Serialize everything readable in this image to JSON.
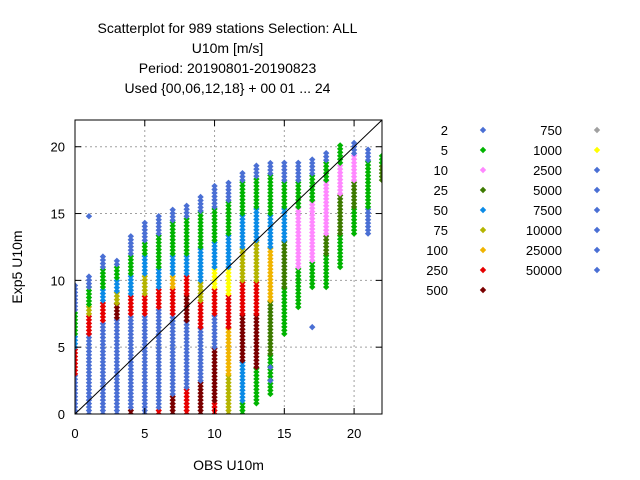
{
  "title_lines": [
    "Scatterplot for  989 stations Selection: ALL",
    "U10m [m/s]",
    "Period: 20190801-20190823",
    "Used {00,06,12,18} + 00 01 ... 24"
  ],
  "chart_data": {
    "type": "scatter",
    "xlabel": "OBS U10m",
    "ylabel": "Exp5 U10m",
    "xlim": [
      0,
      22
    ],
    "ylim": [
      0,
      22
    ],
    "xticks": [
      0,
      5,
      10,
      15,
      20
    ],
    "yticks": [
      0,
      5,
      10,
      15,
      20
    ],
    "grid": true,
    "diagonal": true,
    "legend_position": "right",
    "legend": [
      {
        "label": "2",
        "color": "#4a6fd4"
      },
      {
        "label": "5",
        "color": "#00b400"
      },
      {
        "label": "10",
        "color": "#ff88ff"
      },
      {
        "label": "25",
        "color": "#3d7a00"
      },
      {
        "label": "50",
        "color": "#0b8be6"
      },
      {
        "label": "75",
        "color": "#b4b400"
      },
      {
        "label": "100",
        "color": "#f0b400"
      },
      {
        "label": "250",
        "color": "#e60000"
      },
      {
        "label": "500",
        "color": "#7a0000"
      },
      {
        "label": "750",
        "color": "#a0a0a0"
      },
      {
        "label": "1000",
        "color": "#ffff00"
      },
      {
        "label": "2500",
        "color": "#4a6fd4"
      },
      {
        "label": "5000",
        "color": "#4a6fd4"
      },
      {
        "label": "7500",
        "color": "#4a6fd4"
      },
      {
        "label": "10000",
        "color": "#4a6fd4"
      },
      {
        "label": "25000",
        "color": "#4a6fd4"
      },
      {
        "label": "50000",
        "color": "#4a6fd4"
      }
    ],
    "columns": [
      {
        "x": 0,
        "bands": [
          [
            0,
            3,
            "#4a6fd4"
          ],
          [
            3,
            5,
            "#e60000"
          ],
          [
            5,
            6,
            "#0b8be6"
          ],
          [
            6,
            7.8,
            "#00b400"
          ],
          [
            7.8,
            9.8,
            "#4a6fd4"
          ]
        ]
      },
      {
        "x": 1,
        "bands": [
          [
            0,
            6,
            "#4a6fd4"
          ],
          [
            6,
            7.5,
            "#e60000"
          ],
          [
            7.5,
            8.2,
            "#b4b400"
          ],
          [
            8.2,
            9.5,
            "#00b400"
          ],
          [
            9.5,
            10.5,
            "#4a6fd4"
          ]
        ],
        "extra": [
          14.8
        ]
      },
      {
        "x": 2,
        "bands": [
          [
            0,
            7,
            "#4a6fd4"
          ],
          [
            7,
            8.5,
            "#e60000"
          ],
          [
            8.5,
            9.5,
            "#0b8be6"
          ],
          [
            9.5,
            11,
            "#00b400"
          ],
          [
            11,
            11.8,
            "#4a6fd4"
          ]
        ]
      },
      {
        "x": 3,
        "bands": [
          [
            0,
            7.2,
            "#4a6fd4"
          ],
          [
            7.2,
            8.3,
            "#7a0000"
          ],
          [
            8.3,
            9.2,
            "#b4b400"
          ],
          [
            9.2,
            10.2,
            "#0b8be6"
          ],
          [
            10.2,
            11.2,
            "#00b400"
          ],
          [
            11.2,
            11.5,
            "#4a6fd4"
          ]
        ]
      },
      {
        "x": 4,
        "bands": [
          [
            0,
            0.5,
            "#7a0000"
          ],
          [
            0.5,
            7.5,
            "#4a6fd4"
          ],
          [
            7.5,
            9,
            "#e60000"
          ],
          [
            9,
            10.5,
            "#0b8be6"
          ],
          [
            10.5,
            12,
            "#00b400"
          ],
          [
            12,
            13.5,
            "#4a6fd4"
          ]
        ]
      },
      {
        "x": 5,
        "bands": [
          [
            0,
            7.5,
            "#4a6fd4"
          ],
          [
            7.5,
            9,
            "#e60000"
          ],
          [
            9,
            10.5,
            "#b4b400"
          ],
          [
            10.5,
            12,
            "#0b8be6"
          ],
          [
            12,
            13,
            "#00b400"
          ],
          [
            13,
            14.5,
            "#4a6fd4"
          ]
        ]
      },
      {
        "x": 6,
        "bands": [
          [
            0,
            0.5,
            "#e60000"
          ],
          [
            0.5,
            8,
            "#4a6fd4"
          ],
          [
            8,
            9.5,
            "#e60000"
          ],
          [
            9.5,
            11,
            "#0b8be6"
          ],
          [
            11,
            13.5,
            "#00b400"
          ],
          [
            13.5,
            14.8,
            "#4a6fd4"
          ]
        ]
      },
      {
        "x": 7,
        "bands": [
          [
            0,
            1.5,
            "#7a0000"
          ],
          [
            1.5,
            7.5,
            "#4a6fd4"
          ],
          [
            7.5,
            9.5,
            "#e60000"
          ],
          [
            9.5,
            10.5,
            "#f0b400"
          ],
          [
            10.5,
            12,
            "#0b8be6"
          ],
          [
            12,
            14.5,
            "#00b400"
          ],
          [
            14.5,
            15.3,
            "#4a6fd4"
          ]
        ]
      },
      {
        "x": 8,
        "bands": [
          [
            0,
            2,
            "#e60000"
          ],
          [
            2,
            7,
            "#4a6fd4"
          ],
          [
            7,
            9,
            "#7a0000"
          ],
          [
            9,
            10.5,
            "#e60000"
          ],
          [
            10.5,
            12,
            "#0b8be6"
          ],
          [
            12,
            14.8,
            "#00b400"
          ],
          [
            14.8,
            15.6,
            "#4a6fd4"
          ]
        ]
      },
      {
        "x": 9,
        "bands": [
          [
            0,
            2.5,
            "#7a0000"
          ],
          [
            2.5,
            6.5,
            "#4a6fd4"
          ],
          [
            6.5,
            8.5,
            "#e60000"
          ],
          [
            8.5,
            10,
            "#b4b400"
          ],
          [
            10,
            12.5,
            "#0b8be6"
          ],
          [
            12.5,
            15.2,
            "#00b400"
          ],
          [
            15.2,
            16.3,
            "#4a6fd4"
          ]
        ]
      },
      {
        "x": 10,
        "bands": [
          [
            0,
            1,
            "#e60000"
          ],
          [
            1,
            5,
            "#7a0000"
          ],
          [
            5,
            7.5,
            "#4a6fd4"
          ],
          [
            7.5,
            9.5,
            "#e60000"
          ],
          [
            9.5,
            11,
            "#ffff00"
          ],
          [
            11,
            13,
            "#0b8be6"
          ],
          [
            13,
            15.5,
            "#00b400"
          ],
          [
            15.5,
            17.2,
            "#4a6fd4"
          ]
        ]
      },
      {
        "x": 11,
        "bands": [
          [
            0,
            3,
            "#b4b400"
          ],
          [
            3,
            6.5,
            "#f0b400"
          ],
          [
            6.5,
            9,
            "#e60000"
          ],
          [
            9,
            11,
            "#ffff00"
          ],
          [
            11,
            13.5,
            "#0b8be6"
          ],
          [
            13.5,
            16,
            "#00b400"
          ],
          [
            16,
            17.5,
            "#4a6fd4"
          ]
        ]
      },
      {
        "x": 12,
        "bands": [
          [
            0,
            1,
            "#00b400"
          ],
          [
            1,
            4,
            "#0b8be6"
          ],
          [
            4,
            7.5,
            "#7a0000"
          ],
          [
            7.5,
            10,
            "#e60000"
          ],
          [
            10,
            12.5,
            "#b4b400"
          ],
          [
            12.5,
            15,
            "#0b8be6"
          ],
          [
            15,
            17.5,
            "#00b400"
          ],
          [
            17.5,
            18.2,
            "#4a6fd4"
          ]
        ]
      },
      {
        "x": 13,
        "bands": [
          [
            0.8,
            3.5,
            "#00b400"
          ],
          [
            3.5,
            7.5,
            "#7a0000"
          ],
          [
            7.5,
            10,
            "#e60000"
          ],
          [
            10,
            13,
            "#b4b400"
          ],
          [
            13,
            15.5,
            "#0b8be6"
          ],
          [
            15.5,
            17.8,
            "#00b400"
          ],
          [
            17.8,
            18.6,
            "#4a6fd4"
          ]
        ]
      },
      {
        "x": 14,
        "bands": [
          [
            1.5,
            4.5,
            "#00b400"
          ],
          [
            4.5,
            8.5,
            "#3d7a00"
          ],
          [
            8.5,
            12.5,
            "#f0b400"
          ],
          [
            12.5,
            15,
            "#0b8be6"
          ],
          [
            15,
            18,
            "#00b400"
          ],
          [
            18,
            18.8,
            "#4a6fd4"
          ]
        ],
        "extra": [
          2.5,
          3.5
        ]
      },
      {
        "x": 15,
        "bands": [
          [
            6,
            9.5,
            "#00b400"
          ],
          [
            9.5,
            13,
            "#3d7a00"
          ],
          [
            13,
            15.5,
            "#0b8be6"
          ],
          [
            15.5,
            17.5,
            "#00b400"
          ],
          [
            17.5,
            18.8,
            "#4a6fd4"
          ]
        ]
      },
      {
        "x": 16,
        "bands": [
          [
            8,
            11,
            "#00b400"
          ],
          [
            11,
            15.5,
            "#ff88ff"
          ],
          [
            15.5,
            17.5,
            "#00b400"
          ],
          [
            17.5,
            19,
            "#4a6fd4"
          ]
        ]
      },
      {
        "x": 17,
        "bands": [
          [
            9.5,
            11.5,
            "#00b400"
          ],
          [
            11.5,
            16,
            "#ff88ff"
          ],
          [
            16,
            18,
            "#00b400"
          ],
          [
            18,
            19.2,
            "#4a6fd4"
          ]
        ],
        "extra": [
          6.5
        ]
      },
      {
        "x": 18,
        "bands": [
          [
            9.5,
            12,
            "#00b400"
          ],
          [
            12,
            13.5,
            "#3d7a00"
          ],
          [
            13.5,
            17.5,
            "#ff88ff"
          ],
          [
            17.5,
            19,
            "#00b400"
          ],
          [
            19,
            19.6,
            "#4a6fd4"
          ]
        ]
      },
      {
        "x": 19,
        "bands": [
          [
            11,
            13.5,
            "#00b400"
          ],
          [
            13.5,
            16.5,
            "#3d7a00"
          ],
          [
            16.5,
            18.8,
            "#ff88ff"
          ],
          [
            18.8,
            20.2,
            "#00b400"
          ]
        ]
      },
      {
        "x": 20,
        "bands": [
          [
            13.5,
            15.5,
            "#00b400"
          ],
          [
            15.5,
            17.5,
            "#3d7a00"
          ],
          [
            17.5,
            19.5,
            "#ff88ff"
          ],
          [
            19.5,
            20.5,
            "#4a6fd4"
          ]
        ]
      },
      {
        "x": 21,
        "bands": [
          [
            13.5,
            15.5,
            "#4a6fd4"
          ],
          [
            15.5,
            19,
            "#00b400"
          ],
          [
            19,
            20,
            "#4a6fd4"
          ]
        ]
      },
      {
        "x": 22,
        "bands": [
          [
            17.5,
            18.8,
            "#3d7a00"
          ],
          [
            18.8,
            19.5,
            "#00b400"
          ]
        ]
      }
    ]
  }
}
